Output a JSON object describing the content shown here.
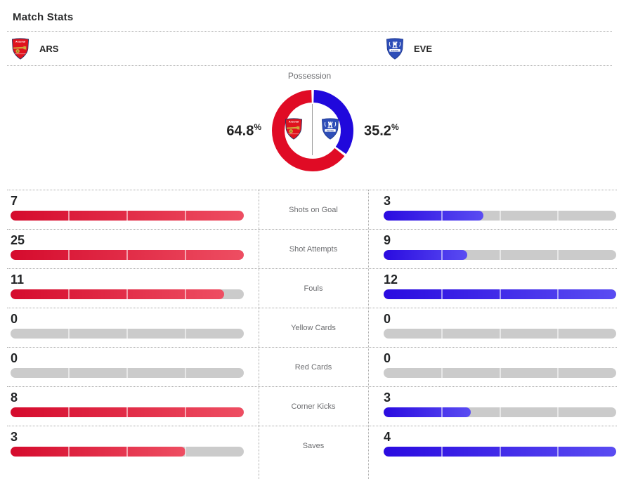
{
  "header": {
    "title": "Match Stats"
  },
  "teams": {
    "home": {
      "abbr": "ARS",
      "name": "Arsenal"
    },
    "away": {
      "abbr": "EVE",
      "name": "Everton"
    }
  },
  "possession": {
    "label": "Possession",
    "home_pct": "64.8",
    "away_pct": "35.2",
    "unit": "%"
  },
  "stats": [
    {
      "label": "Shots on Goal",
      "home": 7,
      "away": 3
    },
    {
      "label": "Shot Attempts",
      "home": 25,
      "away": 9
    },
    {
      "label": "Fouls",
      "home": 11,
      "away": 12
    },
    {
      "label": "Yellow Cards",
      "home": 0,
      "away": 0
    },
    {
      "label": "Red Cards",
      "home": 0,
      "away": 0
    },
    {
      "label": "Corner Kicks",
      "home": 8,
      "away": 3
    },
    {
      "label": "Saves",
      "home": 3,
      "away": 4
    }
  ],
  "colors": {
    "home_bar_start": "#d50b2d",
    "home_bar_end": "#ee4e62",
    "away_bar_start": "#2a0be0",
    "away_bar_end": "#5a4cf2",
    "home_ring": "#e00b25",
    "away_ring": "#2008dc",
    "track": "#cbcbcb"
  },
  "chart_data": [
    {
      "type": "pie",
      "title": "Possession",
      "categories": [
        "ARS",
        "EVE"
      ],
      "values": [
        64.8,
        35.2
      ],
      "unit": "%",
      "colors": [
        "#e00b25",
        "#2008dc"
      ],
      "donut": true,
      "labels": [
        "64.8%",
        "35.2%"
      ]
    },
    {
      "type": "bar",
      "title": "Match Stats",
      "orientation": "horizontal",
      "categories": [
        "Shots on Goal",
        "Shot Attempts",
        "Fouls",
        "Yellow Cards",
        "Red Cards",
        "Corner Kicks",
        "Saves"
      ],
      "series": [
        {
          "name": "ARS",
          "values": [
            7,
            25,
            11,
            0,
            0,
            8,
            3
          ]
        },
        {
          "name": "EVE",
          "values": [
            3,
            9,
            12,
            0,
            0,
            3,
            4
          ]
        }
      ],
      "note": "each bar scaled to max(home, away) per category, 4-segment track"
    }
  ]
}
